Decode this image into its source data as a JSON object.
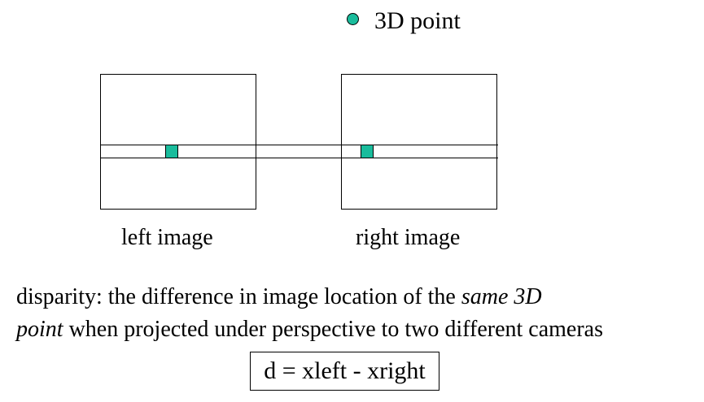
{
  "point": {
    "label": "3D point",
    "color": "#1abc9c"
  },
  "images": {
    "left_caption": "left image",
    "right_caption": "right image"
  },
  "definition": {
    "part1": "disparity: the difference in image location of the ",
    "emphasis1": "same 3D",
    "emphasis2": "point",
    "part2": " when projected under perspective to two different cameras"
  },
  "formula": "d = xleft - xright"
}
